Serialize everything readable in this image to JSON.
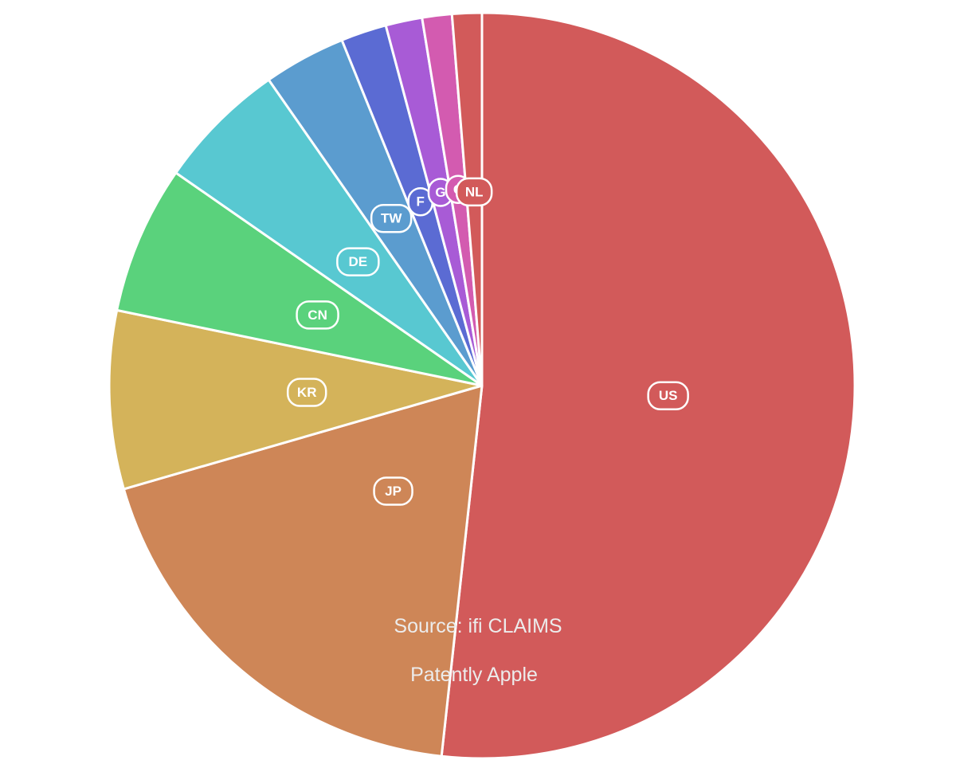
{
  "chart_data": {
    "type": "pie",
    "start": "top",
    "direction": "clockwise",
    "slices": [
      {
        "label": "US",
        "value": 52.3,
        "color": "#d25a5a"
      },
      {
        "label": "JP",
        "value": 19.0,
        "color": "#ce8657"
      },
      {
        "label": "KR",
        "value": 7.8,
        "color": "#d4b35a"
      },
      {
        "label": "CN",
        "value": 6.5,
        "color": "#5ad27c"
      },
      {
        "label": "DE",
        "value": 5.7,
        "color": "#58c8d1"
      },
      {
        "label": "TW",
        "value": 3.6,
        "color": "#5b9ccf"
      },
      {
        "label": "FR",
        "value": 2.0,
        "color": "#5b6bd3"
      },
      {
        "label": "GB",
        "value": 1.6,
        "color": "#a85bd6"
      },
      {
        "label": "CA",
        "value": 1.3,
        "color": "#d35bb0"
      },
      {
        "label": "NL",
        "value": 1.3,
        "color": "#d25a5a"
      }
    ],
    "visible_labels": [
      "US",
      "JP",
      "KR",
      "CN",
      "DE",
      "TW",
      "F",
      "G",
      "C",
      "NL"
    ],
    "annotations": [
      "Source: ifi CLAIMS",
      "Patently Apple"
    ]
  }
}
